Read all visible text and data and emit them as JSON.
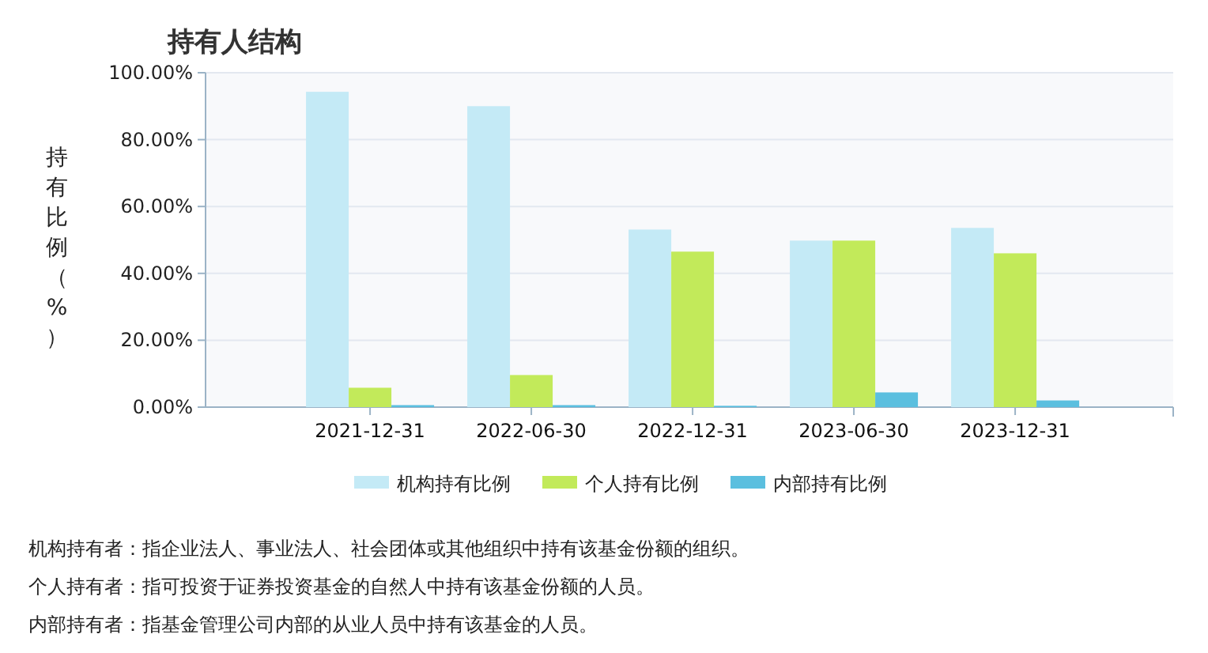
{
  "chart_data": {
    "type": "bar",
    "title": "持有人结构",
    "ylabel": "持有比例（%）",
    "categories": [
      "2021-12-31",
      "2022-06-30",
      "2022-12-31",
      "2023-06-30",
      "2023-12-31"
    ],
    "series": [
      {
        "name": "机构持有比例",
        "color": "#c4eaf6",
        "values": [
          94.3,
          90.0,
          53.1,
          49.8,
          53.6
        ]
      },
      {
        "name": "个人持有比例",
        "color": "#c2ea5a",
        "values": [
          5.8,
          9.6,
          46.5,
          49.8,
          46.0
        ]
      },
      {
        "name": "内部持有比例",
        "color": "#5bbfdf",
        "values": [
          0.6,
          0.6,
          0.4,
          4.4,
          2.0
        ]
      }
    ],
    "ylim": [
      0,
      100
    ],
    "yticks": [
      {
        "value": 0,
        "label": "0.00%"
      },
      {
        "value": 20,
        "label": "20.00%"
      },
      {
        "value": 40,
        "label": "40.00%"
      },
      {
        "value": 60,
        "label": "60.00%"
      },
      {
        "value": 80,
        "label": "80.00%"
      },
      {
        "value": 100,
        "label": "100.00%"
      }
    ],
    "grid": "y",
    "legend": "bottom",
    "annotations": [
      "机构持有者：指企业法人、事业法人、社会团体或其他组织中持有该基金份额的组织。",
      "个人持有者：指可投资于证券投资基金的自然人中持有该基金份额的人员。",
      "内部持有者：指基金管理公司内部的从业人员中持有该基金的人员。"
    ]
  }
}
